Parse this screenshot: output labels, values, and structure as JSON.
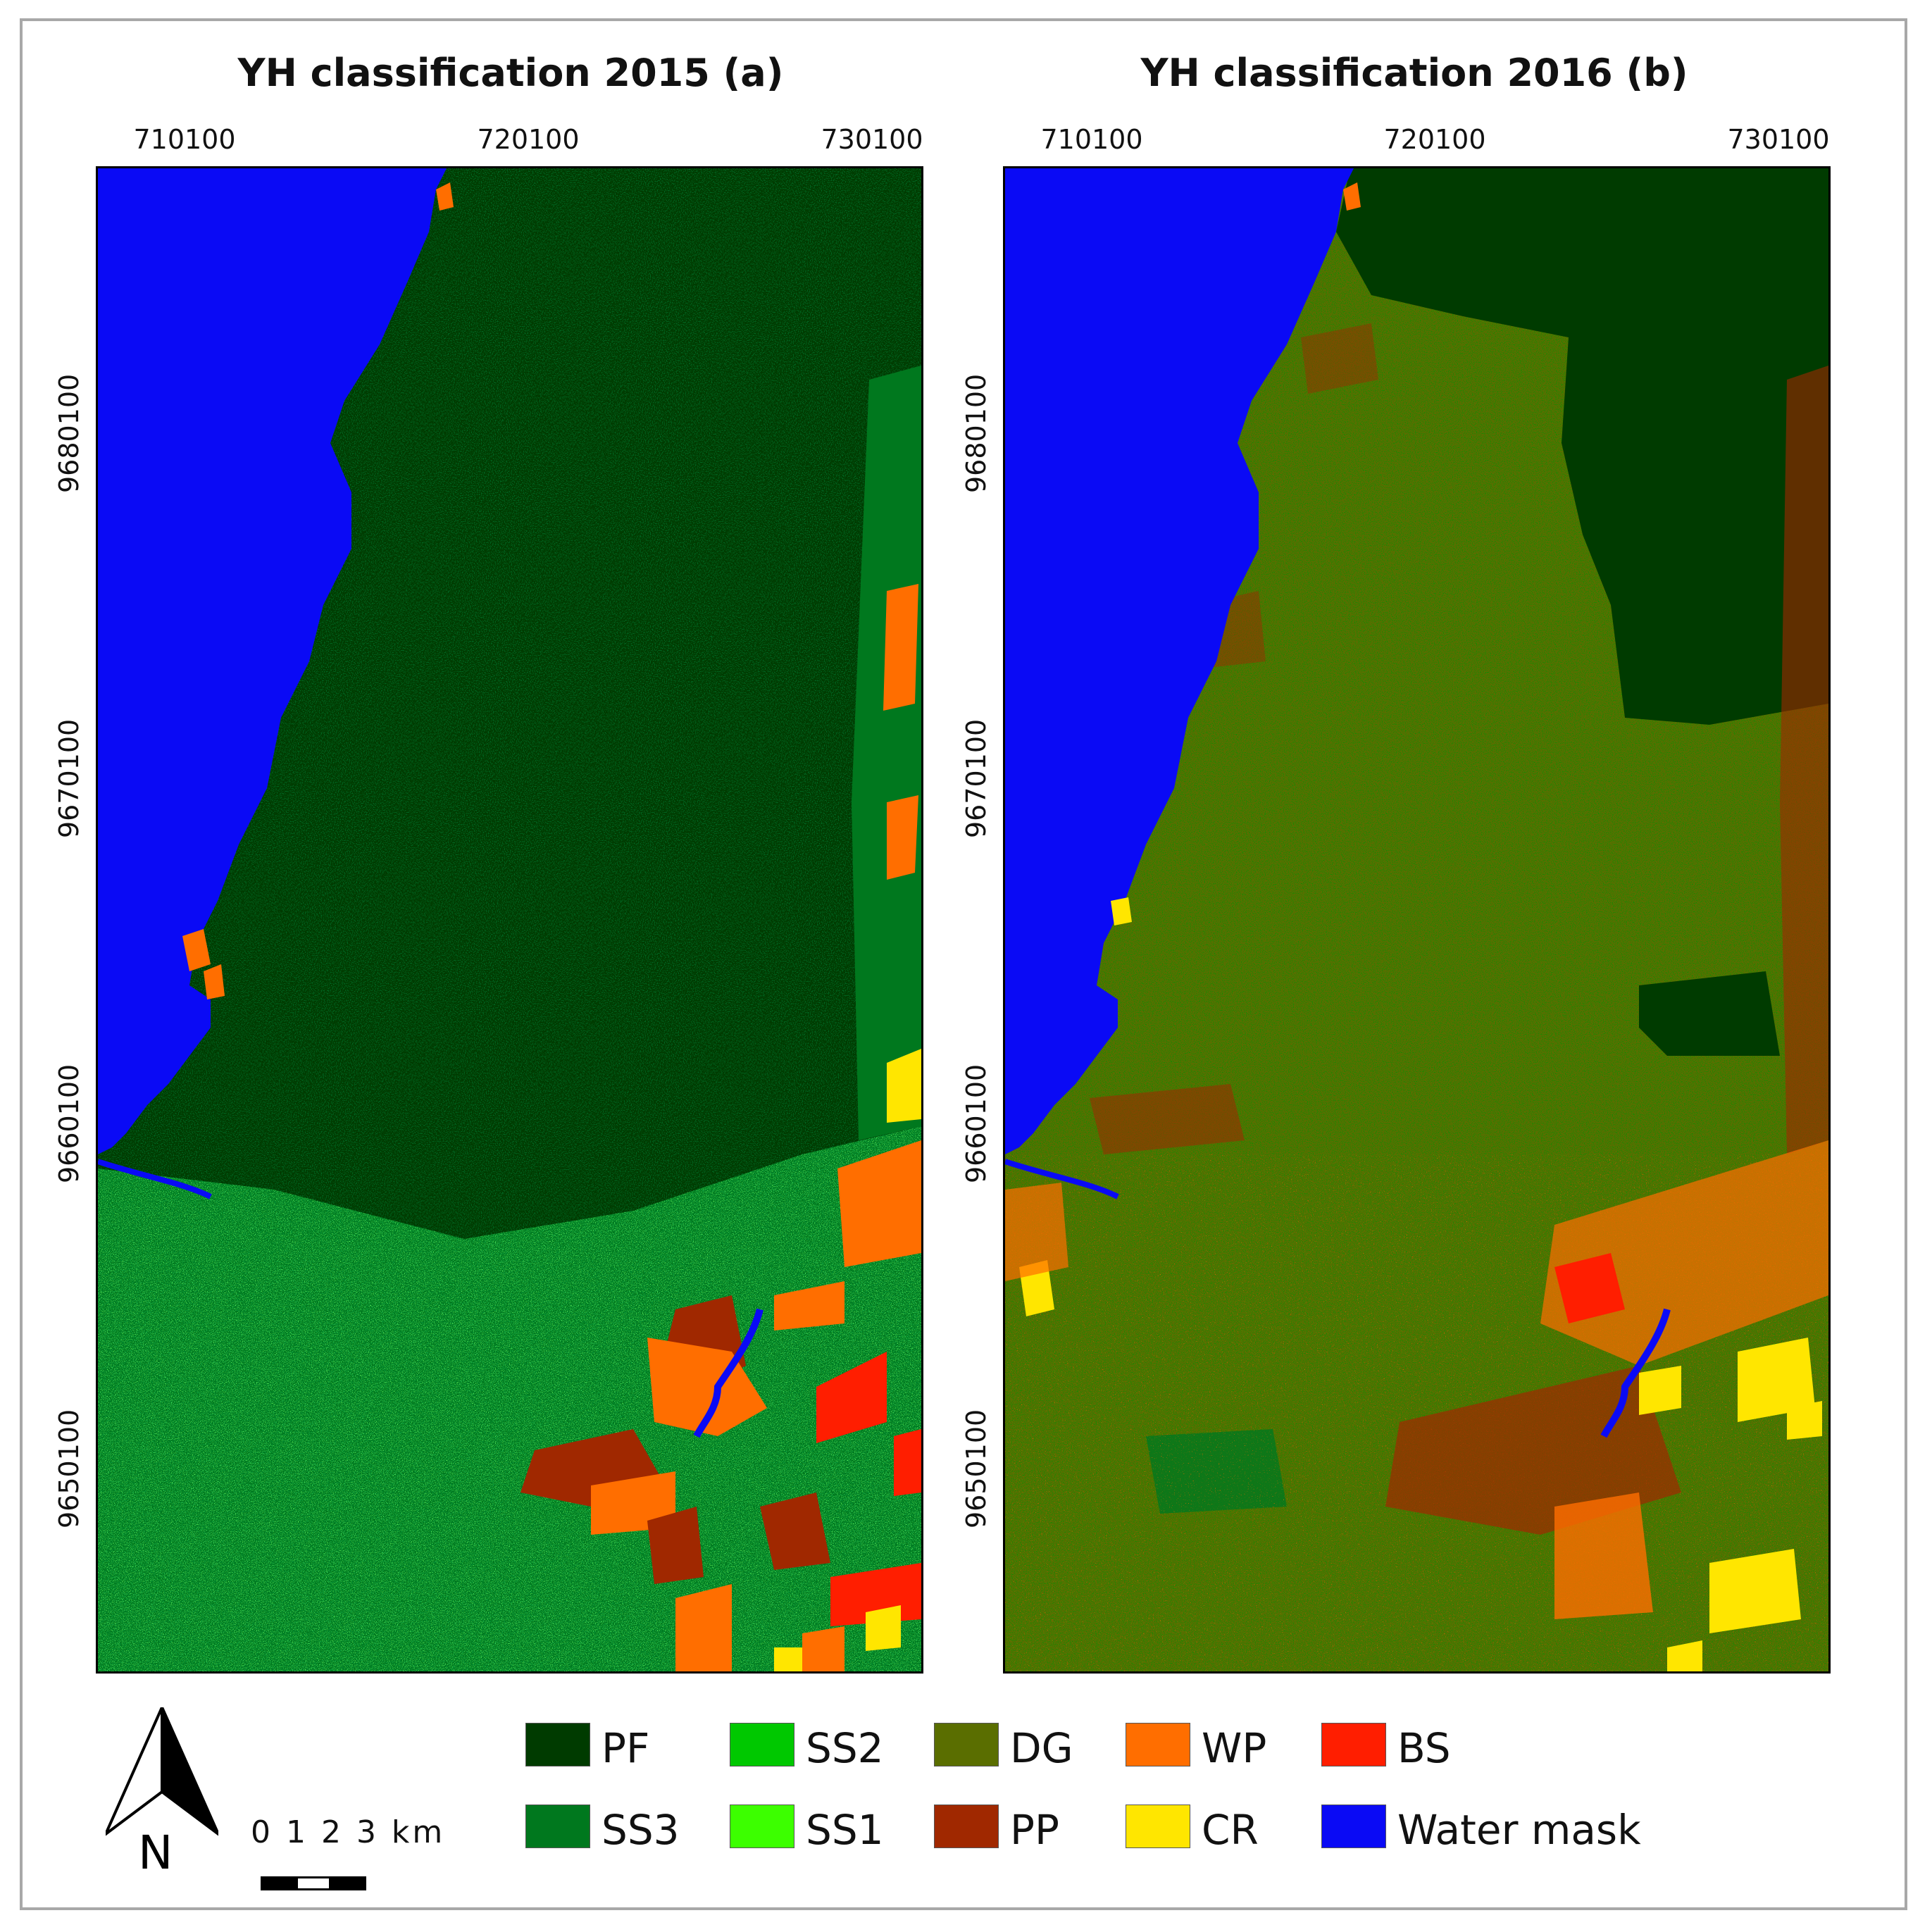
{
  "panels": [
    {
      "title": "YH classification 2015 (a)",
      "x_ticks": [
        "710100",
        "720100",
        "730100"
      ],
      "y_ticks": [
        "9680100",
        "9670100",
        "9660100",
        "9650100"
      ]
    },
    {
      "title": "YH classification 2016 (b)",
      "x_ticks": [
        "710100",
        "720100",
        "730100"
      ],
      "y_ticks": [
        "9680100",
        "9670100",
        "9660100",
        "9650100"
      ]
    }
  ],
  "legend": [
    {
      "code": "PF",
      "color": "#003b00"
    },
    {
      "code": "SS2",
      "color": "#00c800"
    },
    {
      "code": "DG",
      "color": "#5a6e00"
    },
    {
      "code": "WP",
      "color": "#ff6e00"
    },
    {
      "code": "BS",
      "color": "#ff1e00"
    },
    {
      "code": "SS3",
      "color": "#00781e"
    },
    {
      "code": "SS1",
      "color": "#3cff00"
    },
    {
      "code": "PP",
      "color": "#a02800"
    },
    {
      "code": "CR",
      "color": "#ffe600"
    },
    {
      "code": "Water mask",
      "color": "#0a0af5"
    }
  ],
  "north_arrow": {
    "icon": "north-arrow-icon",
    "label": "N"
  },
  "scale_bar": {
    "label": "0 1 2 3 km"
  }
}
